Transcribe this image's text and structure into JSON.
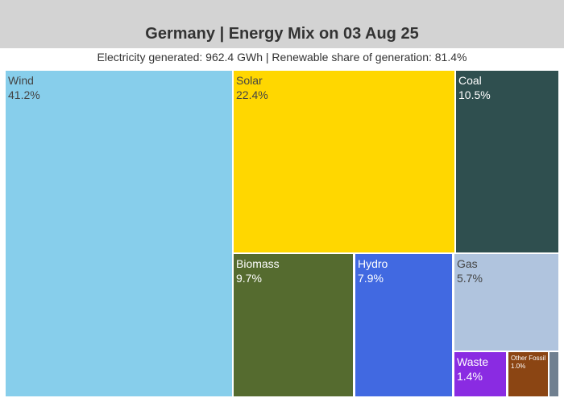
{
  "chart_data": {
    "type": "treemap",
    "title": "Germany | Energy Mix on 03 Aug 25",
    "subtitle": "Electricity generated: 962.4 GWh | Renewable share of generation: 81.4%",
    "items": [
      {
        "name": "Wind",
        "percent": 41.2,
        "label": "41.2%",
        "color": "#87ceeb",
        "text_color": "#444444"
      },
      {
        "name": "Solar",
        "percent": 22.4,
        "label": "22.4%",
        "color": "#ffd700",
        "text_color": "#444444"
      },
      {
        "name": "Coal",
        "percent": 10.5,
        "label": "10.5%",
        "color": "#2f4f4f",
        "text_color": "#ffffff"
      },
      {
        "name": "Biomass",
        "percent": 9.7,
        "label": "9.7%",
        "color": "#556b2f",
        "text_color": "#ffffff"
      },
      {
        "name": "Hydro",
        "percent": 7.9,
        "label": "7.9%",
        "color": "#4169e1",
        "text_color": "#ffffff"
      },
      {
        "name": "Gas",
        "percent": 5.7,
        "label": "5.7%",
        "color": "#b0c4de",
        "text_color": "#444444"
      },
      {
        "name": "Waste",
        "percent": 1.4,
        "label": "1.4%",
        "color": "#8a2be2",
        "text_color": "#ffffff"
      },
      {
        "name": "Other Fossil",
        "percent": 1.0,
        "label": "1.0%",
        "color": "#8b4513",
        "text_color": "#ffffff"
      },
      {
        "name": "",
        "percent": 0.2,
        "label": "",
        "color": "#708090",
        "text_color": "#ffffff"
      }
    ]
  }
}
